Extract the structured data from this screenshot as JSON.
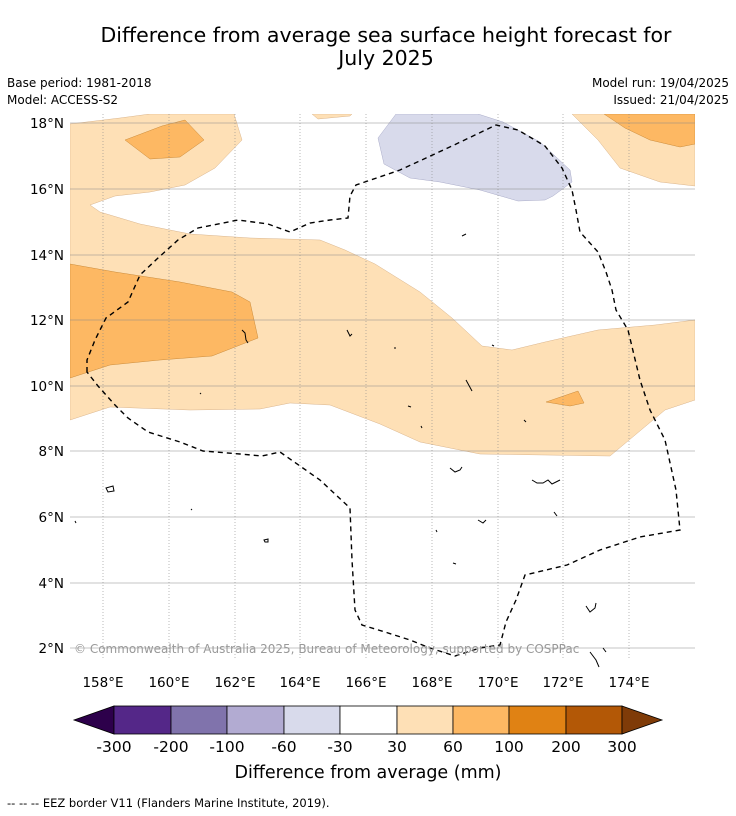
{
  "header": {
    "title_line1": "Difference from average sea surface height forecast for",
    "title_line2": "July 2025",
    "base_period": "Base period: 1981-2018",
    "model": "Model: ACCESS-S2",
    "model_run": "Model run: 19/04/2025",
    "issued": "Issued: 21/04/2025"
  },
  "map": {
    "lat_labels": [
      "18°N",
      "16°N",
      "14°N",
      "12°N",
      "10°N",
      "8°N",
      "6°N",
      "4°N",
      "2°N"
    ],
    "lon_labels": [
      "158°E",
      "160°E",
      "162°E",
      "164°E",
      "166°E",
      "168°E",
      "170°E",
      "172°E",
      "174°E"
    ],
    "copyright": "© Commonwealth of Australia 2025, Bureau of Meteorology, supported by COSPPac",
    "border_color": "#000000"
  },
  "colorbar": {
    "title": "Difference from average (mm)",
    "tick_labels": [
      "-300",
      "-200",
      "-100",
      "-60",
      "-30",
      "30",
      "60",
      "100",
      "200",
      "300"
    ],
    "colors": [
      "#2d004b",
      "#542788",
      "#8073ac",
      "#b2abd2",
      "#d8daeb",
      "#ffffff",
      "#fee0b6",
      "#fdb863",
      "#e08214",
      "#b35806",
      "#7f3b08"
    ]
  },
  "footer": {
    "legend_text": "--  --  -- EEZ border V11 (Flanders Marine Institute, 2019)."
  }
}
